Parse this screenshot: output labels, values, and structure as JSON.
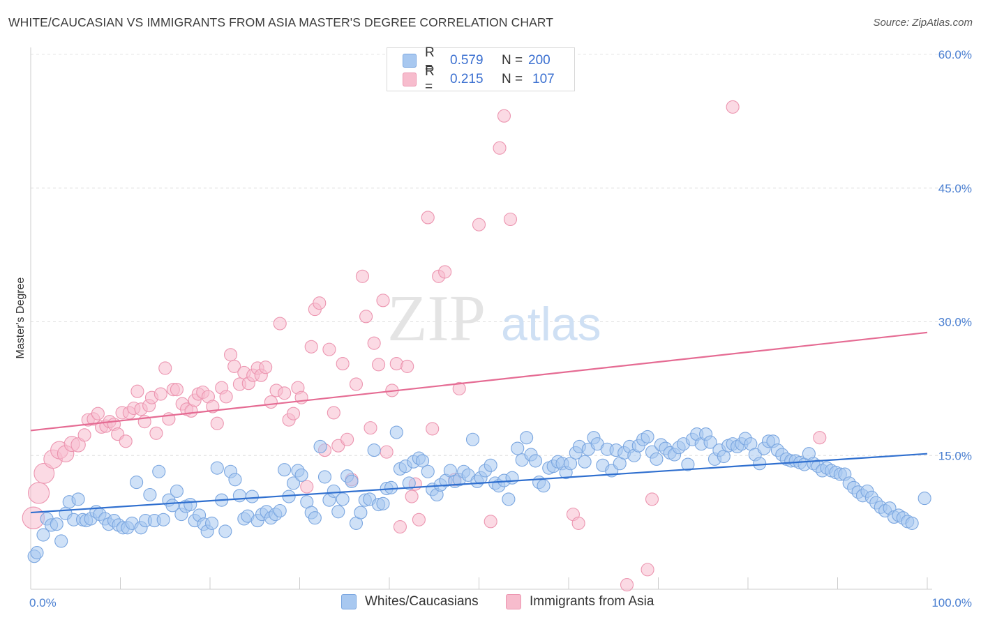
{
  "title": "WHITE/CAUCASIAN VS IMMIGRANTS FROM ASIA MASTER'S DEGREE CORRELATION CHART",
  "source": "Source: ZipAtlas.com",
  "watermark": {
    "zip": "ZIP",
    "atlas": "atlas"
  },
  "legend": {
    "series1": {
      "r_label": "R =",
      "r_value": "0.579",
      "n_label": "N =",
      "n_value": "200"
    },
    "series2": {
      "r_label": "R =",
      "r_value": "0.215",
      "n_label": "N =",
      "n_value": "107"
    }
  },
  "bottom_legend": {
    "series1": "Whites/Caucasians",
    "series2": "Immigrants from Asia"
  },
  "colors": {
    "blue_fill": "#a8c8f0",
    "blue_stroke": "#7aa6e0",
    "blue_line": "#2f6fcf",
    "pink_fill": "#f7bccd",
    "pink_stroke": "#ec95b0",
    "pink_line": "#e56b93",
    "tick_text": "#4a7fd1",
    "grid": "#dddddd"
  },
  "chart_data": {
    "type": "scatter",
    "title": "WHITE/CAUCASIAN VS IMMIGRANTS FROM ASIA MASTER'S DEGREE CORRELATION CHART",
    "xlabel": "",
    "ylabel": "Master's Degree",
    "xlim": [
      0,
      100
    ],
    "ylim": [
      0,
      60
    ],
    "x_tick_labels": [
      "0.0%",
      "100.0%"
    ],
    "y_ticks": [
      15,
      30,
      45,
      60
    ],
    "y_tick_labels": [
      "15.0%",
      "30.0%",
      "45.0%",
      "60.0%"
    ],
    "grid": "horizontal dashed",
    "legend_position": "top-center",
    "series": [
      {
        "name": "Whites/Caucasians",
        "color": "#a8c8f0",
        "trend": {
          "x": [
            0,
            100
          ],
          "y": [
            8.6,
            15.2
          ]
        },
        "points": [
          [
            0.4,
            3.7
          ],
          [
            0.7,
            4.1
          ],
          [
            1.4,
            6.1
          ],
          [
            1.8,
            7.9
          ],
          [
            2.3,
            7.2
          ],
          [
            2.9,
            7.3
          ],
          [
            3.4,
            5.4
          ],
          [
            3.9,
            8.5
          ],
          [
            4.3,
            9.8
          ],
          [
            4.8,
            7.8
          ],
          [
            5.3,
            10.1
          ],
          [
            5.8,
            7.8
          ],
          [
            6.2,
            7.7
          ],
          [
            6.7,
            7.9
          ],
          [
            7.3,
            8.7
          ],
          [
            7.7,
            8.4
          ],
          [
            8.3,
            7.9
          ],
          [
            8.7,
            7.3
          ],
          [
            9.3,
            7.7
          ],
          [
            9.8,
            7.2
          ],
          [
            10.3,
            6.9
          ],
          [
            10.8,
            6.9
          ],
          [
            11.3,
            7.4
          ],
          [
            11.8,
            12.0
          ],
          [
            12.3,
            6.9
          ],
          [
            12.8,
            7.7
          ],
          [
            13.3,
            10.6
          ],
          [
            13.8,
            7.7
          ],
          [
            14.3,
            13.2
          ],
          [
            14.8,
            7.8
          ],
          [
            15.4,
            10.0
          ],
          [
            15.8,
            9.4
          ],
          [
            16.3,
            11.0
          ],
          [
            16.8,
            8.4
          ],
          [
            17.3,
            9.3
          ],
          [
            17.8,
            9.5
          ],
          [
            18.3,
            7.7
          ],
          [
            18.8,
            8.3
          ],
          [
            19.3,
            7.3
          ],
          [
            19.7,
            6.5
          ],
          [
            20.2,
            7.4
          ],
          [
            20.8,
            13.6
          ],
          [
            21.3,
            10.0
          ],
          [
            21.7,
            6.5
          ],
          [
            22.3,
            13.2
          ],
          [
            22.8,
            12.3
          ],
          [
            23.3,
            10.5
          ],
          [
            23.8,
            7.9
          ],
          [
            24.2,
            8.2
          ],
          [
            24.7,
            10.4
          ],
          [
            25.3,
            7.7
          ],
          [
            25.8,
            8.4
          ],
          [
            26.3,
            8.7
          ],
          [
            26.8,
            8.0
          ],
          [
            27.3,
            8.4
          ],
          [
            27.8,
            8.8
          ],
          [
            28.3,
            13.4
          ],
          [
            28.8,
            10.4
          ],
          [
            29.3,
            11.9
          ],
          [
            29.8,
            13.3
          ],
          [
            30.2,
            12.8
          ],
          [
            30.8,
            9.8
          ],
          [
            31.3,
            8.6
          ],
          [
            31.7,
            8.0
          ],
          [
            32.3,
            16.0
          ],
          [
            32.8,
            12.6
          ],
          [
            33.3,
            10.0
          ],
          [
            33.8,
            11.0
          ],
          [
            34.3,
            8.7
          ],
          [
            34.8,
            10.1
          ],
          [
            35.3,
            12.7
          ],
          [
            35.8,
            12.1
          ],
          [
            36.3,
            7.4
          ],
          [
            36.8,
            8.6
          ],
          [
            37.3,
            10.0
          ],
          [
            37.8,
            10.1
          ],
          [
            38.3,
            15.6
          ],
          [
            38.8,
            9.5
          ],
          [
            39.3,
            9.6
          ],
          [
            39.7,
            11.3
          ],
          [
            40.2,
            11.4
          ],
          [
            40.8,
            17.6
          ],
          [
            41.2,
            13.5
          ],
          [
            41.8,
            13.8
          ],
          [
            42.2,
            11.9
          ],
          [
            42.7,
            14.3
          ],
          [
            43.3,
            14.7
          ],
          [
            43.7,
            14.4
          ],
          [
            44.3,
            13.2
          ],
          [
            44.8,
            11.2
          ],
          [
            45.3,
            10.6
          ],
          [
            45.7,
            11.7
          ],
          [
            46.3,
            12.2
          ],
          [
            46.8,
            13.3
          ],
          [
            47.3,
            12.1
          ],
          [
            47.8,
            12.3
          ],
          [
            48.3,
            13.2
          ],
          [
            48.8,
            12.8
          ],
          [
            49.3,
            16.8
          ],
          [
            49.8,
            12.1
          ],
          [
            50.2,
            12.5
          ],
          [
            50.7,
            13.3
          ],
          [
            51.3,
            13.9
          ],
          [
            51.8,
            11.9
          ],
          [
            52.2,
            11.6
          ],
          [
            52.8,
            12.2
          ],
          [
            53.3,
            10.1
          ],
          [
            53.7,
            12.5
          ],
          [
            54.3,
            15.8
          ],
          [
            54.8,
            14.5
          ],
          [
            55.3,
            17.0
          ],
          [
            55.8,
            15.1
          ],
          [
            56.3,
            14.4
          ],
          [
            56.7,
            12.0
          ],
          [
            57.2,
            11.6
          ],
          [
            57.8,
            13.6
          ],
          [
            58.3,
            13.8
          ],
          [
            58.8,
            14.3
          ],
          [
            59.3,
            14.1
          ],
          [
            59.7,
            13.1
          ],
          [
            60.2,
            14.1
          ],
          [
            60.8,
            15.3
          ],
          [
            61.2,
            16.0
          ],
          [
            61.8,
            14.3
          ],
          [
            62.2,
            15.7
          ],
          [
            62.8,
            17.0
          ],
          [
            63.2,
            16.3
          ],
          [
            63.8,
            13.9
          ],
          [
            64.3,
            15.7
          ],
          [
            64.8,
            13.3
          ],
          [
            65.3,
            15.6
          ],
          [
            65.7,
            14.1
          ],
          [
            66.2,
            15.3
          ],
          [
            66.8,
            16.0
          ],
          [
            67.3,
            15.0
          ],
          [
            67.8,
            16.1
          ],
          [
            68.3,
            16.8
          ],
          [
            68.8,
            17.1
          ],
          [
            69.3,
            15.4
          ],
          [
            69.8,
            14.6
          ],
          [
            70.3,
            16.2
          ],
          [
            70.8,
            15.8
          ],
          [
            71.3,
            15.3
          ],
          [
            71.8,
            15.1
          ],
          [
            72.3,
            15.9
          ],
          [
            72.8,
            16.3
          ],
          [
            73.3,
            14.0
          ],
          [
            73.8,
            16.8
          ],
          [
            74.3,
            17.4
          ],
          [
            74.8,
            16.3
          ],
          [
            75.3,
            17.4
          ],
          [
            75.8,
            16.5
          ],
          [
            76.3,
            14.6
          ],
          [
            76.8,
            15.6
          ],
          [
            77.3,
            14.9
          ],
          [
            77.8,
            16.1
          ],
          [
            78.3,
            16.3
          ],
          [
            78.8,
            16.0
          ],
          [
            79.3,
            16.3
          ],
          [
            79.7,
            16.9
          ],
          [
            80.3,
            16.3
          ],
          [
            80.8,
            15.1
          ],
          [
            81.3,
            14.1
          ],
          [
            81.8,
            15.8
          ],
          [
            82.3,
            16.6
          ],
          [
            82.8,
            16.6
          ],
          [
            83.3,
            15.6
          ],
          [
            83.8,
            15.1
          ],
          [
            84.3,
            14.6
          ],
          [
            84.8,
            14.4
          ],
          [
            85.3,
            14.4
          ],
          [
            85.8,
            14.2
          ],
          [
            86.3,
            14.0
          ],
          [
            86.8,
            15.2
          ],
          [
            87.3,
            14.1
          ],
          [
            87.8,
            13.8
          ],
          [
            88.3,
            13.3
          ],
          [
            88.8,
            13.6
          ],
          [
            89.3,
            13.3
          ],
          [
            89.8,
            13.1
          ],
          [
            90.3,
            12.9
          ],
          [
            90.8,
            12.9
          ],
          [
            91.3,
            11.9
          ],
          [
            91.8,
            11.4
          ],
          [
            92.3,
            10.9
          ],
          [
            92.8,
            10.5
          ],
          [
            93.3,
            11.0
          ],
          [
            93.8,
            10.3
          ],
          [
            94.3,
            9.7
          ],
          [
            94.8,
            9.2
          ],
          [
            95.3,
            8.8
          ],
          [
            95.8,
            9.1
          ],
          [
            96.3,
            8.1
          ],
          [
            96.8,
            8.3
          ],
          [
            97.3,
            8.0
          ],
          [
            97.8,
            7.6
          ],
          [
            98.3,
            7.4
          ],
          [
            99.7,
            10.2
          ]
        ]
      },
      {
        "name": "Immigrants from Asia",
        "color": "#f7bccd",
        "trend": {
          "x": [
            0,
            100
          ],
          "y": [
            17.8,
            28.8
          ]
        },
        "points": [
          [
            0.3,
            8.0
          ],
          [
            0.9,
            10.8
          ],
          [
            1.5,
            13.0
          ],
          [
            2.5,
            14.6
          ],
          [
            3.2,
            15.6
          ],
          [
            3.9,
            15.2
          ],
          [
            4.6,
            16.3
          ],
          [
            5.3,
            16.2
          ],
          [
            6.0,
            17.3
          ],
          [
            6.4,
            19.0
          ],
          [
            7.0,
            19.1
          ],
          [
            7.5,
            19.7
          ],
          [
            7.9,
            18.2
          ],
          [
            8.4,
            18.3
          ],
          [
            8.8,
            18.8
          ],
          [
            9.3,
            18.5
          ],
          [
            9.7,
            17.4
          ],
          [
            10.2,
            19.8
          ],
          [
            10.6,
            16.6
          ],
          [
            11.0,
            19.8
          ],
          [
            11.5,
            20.3
          ],
          [
            11.9,
            22.2
          ],
          [
            12.3,
            20.2
          ],
          [
            12.7,
            18.8
          ],
          [
            13.2,
            20.6
          ],
          [
            13.5,
            21.5
          ],
          [
            14.0,
            17.5
          ],
          [
            14.5,
            21.9
          ],
          [
            15.0,
            24.8
          ],
          [
            15.4,
            19.1
          ],
          [
            15.9,
            22.4
          ],
          [
            16.3,
            22.4
          ],
          [
            16.9,
            20.8
          ],
          [
            17.4,
            20.2
          ],
          [
            17.9,
            20.0
          ],
          [
            18.3,
            21.2
          ],
          [
            18.7,
            21.9
          ],
          [
            19.2,
            22.1
          ],
          [
            19.8,
            21.6
          ],
          [
            20.3,
            20.5
          ],
          [
            20.8,
            18.6
          ],
          [
            21.3,
            22.6
          ],
          [
            21.8,
            21.6
          ],
          [
            22.3,
            26.3
          ],
          [
            22.7,
            25.0
          ],
          [
            23.3,
            23.0
          ],
          [
            23.8,
            24.3
          ],
          [
            24.3,
            23.1
          ],
          [
            24.8,
            24.0
          ],
          [
            25.3,
            24.8
          ],
          [
            25.7,
            24.0
          ],
          [
            26.2,
            24.9
          ],
          [
            26.8,
            21.0
          ],
          [
            27.4,
            22.3
          ],
          [
            27.8,
            29.8
          ],
          [
            28.3,
            22.0
          ],
          [
            28.8,
            19.0
          ],
          [
            29.3,
            19.7
          ],
          [
            29.8,
            22.6
          ],
          [
            30.2,
            21.5
          ],
          [
            30.8,
            11.5
          ],
          [
            31.3,
            27.2
          ],
          [
            31.7,
            31.4
          ],
          [
            32.2,
            32.1
          ],
          [
            32.8,
            15.6
          ],
          [
            33.3,
            26.9
          ],
          [
            33.8,
            19.8
          ],
          [
            34.3,
            16.1
          ],
          [
            34.8,
            25.3
          ],
          [
            35.3,
            16.8
          ],
          [
            35.8,
            12.3
          ],
          [
            36.3,
            23.0
          ],
          [
            37.0,
            35.1
          ],
          [
            37.4,
            30.6
          ],
          [
            37.9,
            18.1
          ],
          [
            38.3,
            27.6
          ],
          [
            38.8,
            25.2
          ],
          [
            39.3,
            32.4
          ],
          [
            39.7,
            15.4
          ],
          [
            40.3,
            22.3
          ],
          [
            40.8,
            25.3
          ],
          [
            41.2,
            7.0
          ],
          [
            42.0,
            25.0
          ],
          [
            42.5,
            10.4
          ],
          [
            42.9,
            11.8
          ],
          [
            43.3,
            7.8
          ],
          [
            44.3,
            41.7
          ],
          [
            44.8,
            18.0
          ],
          [
            45.5,
            35.1
          ],
          [
            46.2,
            35.6
          ],
          [
            47.3,
            12.3
          ],
          [
            47.8,
            22.5
          ],
          [
            50.0,
            40.9
          ],
          [
            51.3,
            7.6
          ],
          [
            52.3,
            49.5
          ],
          [
            52.8,
            53.1
          ],
          [
            53.5,
            41.5
          ],
          [
            60.5,
            8.4
          ],
          [
            61.1,
            7.4
          ],
          [
            66.5,
            0.5
          ],
          [
            68.8,
            2.2
          ],
          [
            69.3,
            10.1
          ],
          [
            78.3,
            54.1
          ],
          [
            88.0,
            17.0
          ]
        ]
      }
    ]
  }
}
